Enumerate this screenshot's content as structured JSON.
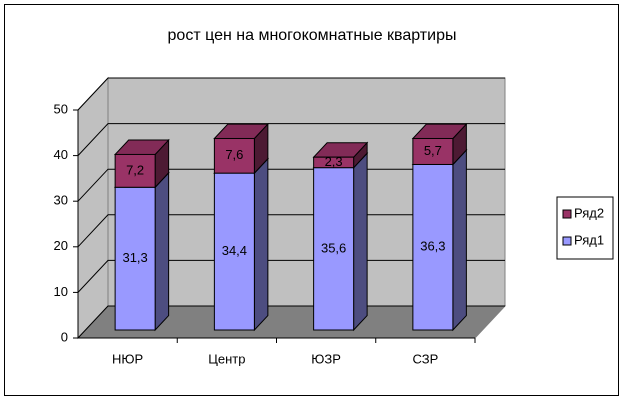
{
  "chart_data": {
    "type": "bar3d_stacked",
    "title": "рост цен на многокомнатные квартиры",
    "categories": [
      "НЮР",
      "Центр",
      "ЮЗР",
      "СЗР"
    ],
    "series": [
      {
        "name": "Ряд1",
        "color": "#9999ff",
        "values": [
          31.3,
          34.4,
          35.6,
          36.3
        ],
        "value_labels": [
          "31,3",
          "34,4",
          "35,6",
          "36,3"
        ]
      },
      {
        "name": "Ряд2",
        "color": "#993366",
        "values": [
          7.2,
          7.6,
          2.3,
          5.7
        ],
        "value_labels": [
          "7,2",
          "7,6",
          "2,3",
          "5,7"
        ]
      }
    ],
    "ylim": [
      0,
      50
    ],
    "yticks": [
      0,
      10,
      20,
      30,
      40,
      50
    ],
    "grid": true,
    "legend": "right"
  }
}
